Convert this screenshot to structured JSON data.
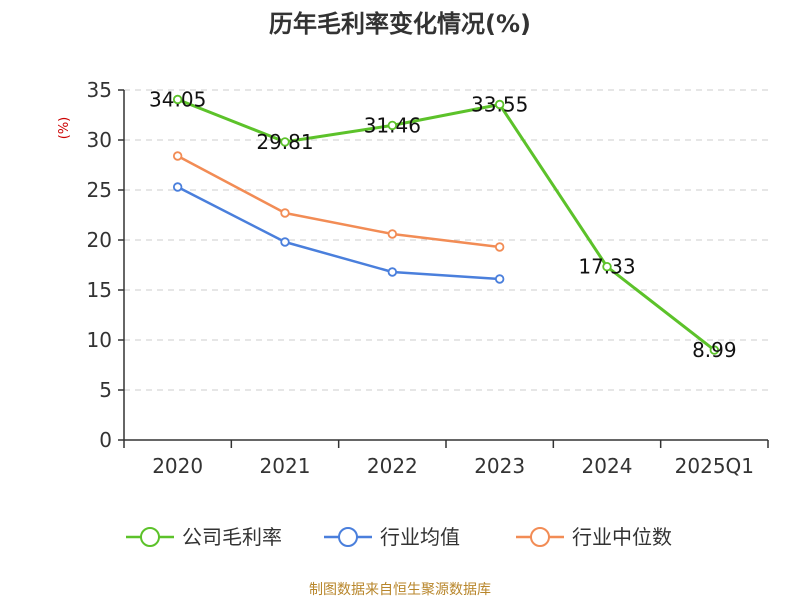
{
  "chart_data": {
    "type": "line",
    "title": "历年毛利率变化情况(%)",
    "ylabel": "(%)",
    "xlabel": "",
    "categories": [
      "2020",
      "2021",
      "2022",
      "2023",
      "2024",
      "2025Q1"
    ],
    "ylim": [
      0,
      35
    ],
    "yticks": [
      0,
      5,
      10,
      15,
      20,
      25,
      30,
      35
    ],
    "grid": true,
    "legend_position": "bottom",
    "series": [
      {
        "name": "公司毛利率",
        "color": "#5cc22a",
        "values": [
          34.05,
          29.81,
          31.46,
          33.55,
          17.33,
          8.99
        ],
        "labels": [
          "34.05",
          "29.81",
          "31.46",
          "33.55",
          "17.33",
          "8.99"
        ]
      },
      {
        "name": "行业均值",
        "color": "#4a7fdc",
        "values": [
          25.3,
          19.8,
          16.8,
          16.1,
          null,
          null
        ]
      },
      {
        "name": "行业中位数",
        "color": "#f28c55",
        "values": [
          28.4,
          22.7,
          20.6,
          19.3,
          null,
          null
        ]
      }
    ]
  },
  "source": "制图数据来自恒生聚源数据库"
}
